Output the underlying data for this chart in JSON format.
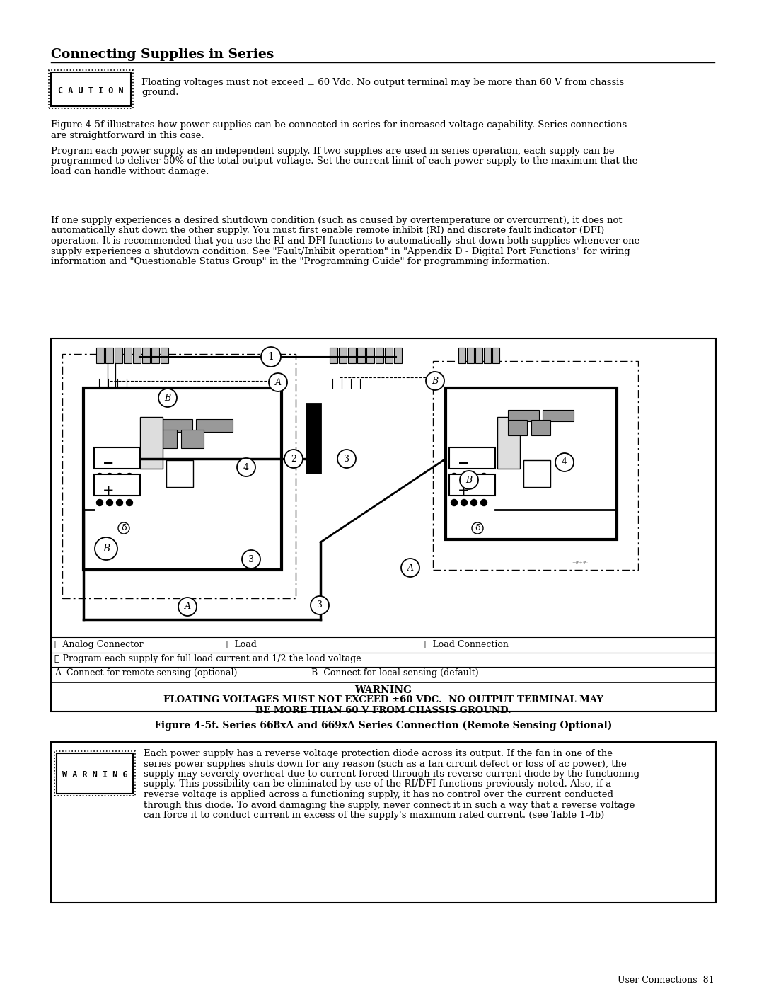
{
  "title": "Connecting Supplies in Series",
  "background_color": "#ffffff",
  "caution_text_line1": "Floating voltages must not exceed ± 60 Vdc. No output terminal may be more than 60 V from chassis",
  "caution_text_line2": "ground.",
  "para1_lines": [
    "Figure 4-5f illustrates how power supplies can be connected in series for increased voltage capability. Series connections",
    "are straightforward in this case.",
    "Program each power supply as an independent supply. If two supplies are used in series operation, each supply can be",
    "programmed to deliver 50% of the total output voltage. Set the current limit of each power supply to the maximum that the",
    "load can handle without damage."
  ],
  "para2_lines": [
    "If one supply experiences a desired shutdown condition (such as caused by overtemperature or overcurrent), it does not",
    "automatically shut down the other supply. You must first enable remote inhibit (RI) and discrete fault indicator (DFI)",
    "operation. It is recommended that you use the RI and DFI functions to automatically shut down both supplies whenever one",
    "supply experiences a shutdown condition. See \"Fault/Inhibit operation\" in \"Appendix D - Digital Port Functions\" for wiring",
    "information and \"Questionable Status Group\" in the \"Programming Guide\" for programming information."
  ],
  "legend_line1a": "① Analog Connector",
  "legend_line1b": "② Load",
  "legend_line1c": "③ Load Connection",
  "legend_line2": "④ Program each supply for full load current and 1/2 the load voltage",
  "legend_line3a": "A  Connect for remote sensing (optional)",
  "legend_line3b": "B  Connect for local sensing (default)",
  "warning_caption": "WARNING",
  "warning_line1": "FLOATING VOLTAGES MUST NOT EXCEED ±60 VDC.  NO OUTPUT TERMINAL MAY",
  "warning_line2": "BE MORE THAN 60 V FROM CHASSIS GROUND.",
  "figure_caption": "Figure 4-5f. Series 668xA and 669xA Series Connection (Remote Sensing Optional)",
  "warning2_lines": [
    "Each power supply has a reverse voltage protection diode across its output. If the fan in one of the",
    "series power supplies shuts down for any reason (such as a fan circuit defect or loss of ac power), the",
    "supply may severely overheat due to current forced through its reverse current diode by the functioning",
    "supply. This possibility can be eliminated by use of the RI/DFI functions previously noted. Also, if a",
    "reverse voltage is applied across a functioning supply, it has no control over the current conducted",
    "through this diode. To avoid damaging the supply, never connect it in such a way that a reverse voltage",
    "can force it to conduct current in excess of the supply's maximum rated current. (see Table 1-4b)"
  ],
  "footer": "User Connections  81"
}
